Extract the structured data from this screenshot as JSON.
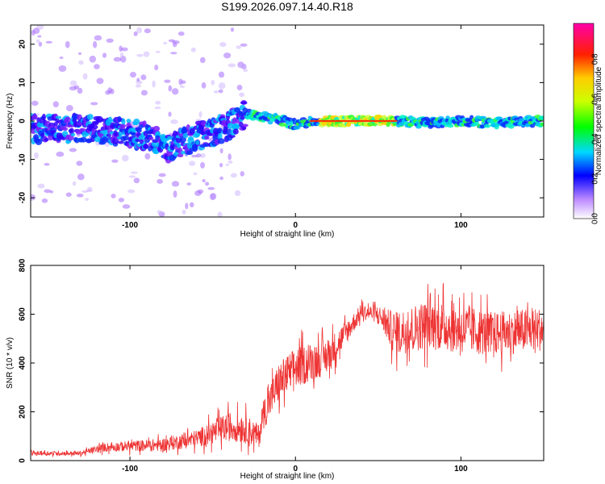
{
  "figure_title": "S199.2026.097.14.40.R18",
  "chart_data": [
    {
      "type": "heatmap",
      "title": "S199.2026.097.14.40.R18",
      "xlabel": "Height of straight line (km)",
      "ylabel": "Frequency (Hz)",
      "xlim": [
        -160,
        150
      ],
      "ylim": [
        -25,
        25
      ],
      "x_ticks": [
        -100,
        0,
        100
      ],
      "y_ticks": [
        -20,
        -10,
        0,
        10,
        20
      ],
      "ridge": [
        [
          -160,
          -2
        ],
        [
          -140,
          -2
        ],
        [
          -120,
          -2.5
        ],
        [
          -100,
          -3
        ],
        [
          -85,
          -5
        ],
        [
          -75,
          -7
        ],
        [
          -60,
          -4
        ],
        [
          -50,
          -3
        ],
        [
          -40,
          -1
        ],
        [
          -30,
          2
        ],
        [
          -20,
          1
        ],
        [
          -10,
          0.5
        ],
        [
          0,
          -1
        ],
        [
          10,
          0
        ],
        [
          30,
          0
        ],
        [
          60,
          0
        ],
        [
          80,
          -0.5
        ],
        [
          100,
          0
        ],
        [
          120,
          -0.5
        ],
        [
          150,
          0
        ]
      ],
      "colorbar": {
        "label": "Normalized spectral amplitude",
        "range": [
          0,
          0.98
        ],
        "ticks": [
          0.0,
          0.2,
          0.4,
          0.6,
          0.8
        ]
      }
    },
    {
      "type": "line",
      "xlabel": "Height of straight line (km)",
      "ylabel": "SNR (10 * v/v)",
      "xlim": [
        -160,
        150
      ],
      "ylim": [
        0,
        800
      ],
      "x_ticks": [
        -100,
        0,
        100
      ],
      "y_ticks": [
        0,
        200,
        400,
        600,
        800
      ],
      "series_color": "#ee3333",
      "envelope": {
        "x": [
          -160,
          -130,
          -115,
          -80,
          -60,
          -40,
          -30,
          -22,
          -20,
          -10,
          0,
          20,
          40,
          50,
          60,
          80,
          100,
          120,
          150
        ],
        "baseline": [
          30,
          30,
          55,
          65,
          90,
          140,
          130,
          100,
          180,
          320,
          380,
          430,
          610,
          600,
          520,
          560,
          540,
          520,
          540
        ],
        "amplitude": [
          15,
          15,
          30,
          45,
          60,
          100,
          100,
          80,
          100,
          140,
          140,
          120,
          50,
          60,
          150,
          170,
          170,
          150,
          150
        ]
      }
    }
  ]
}
